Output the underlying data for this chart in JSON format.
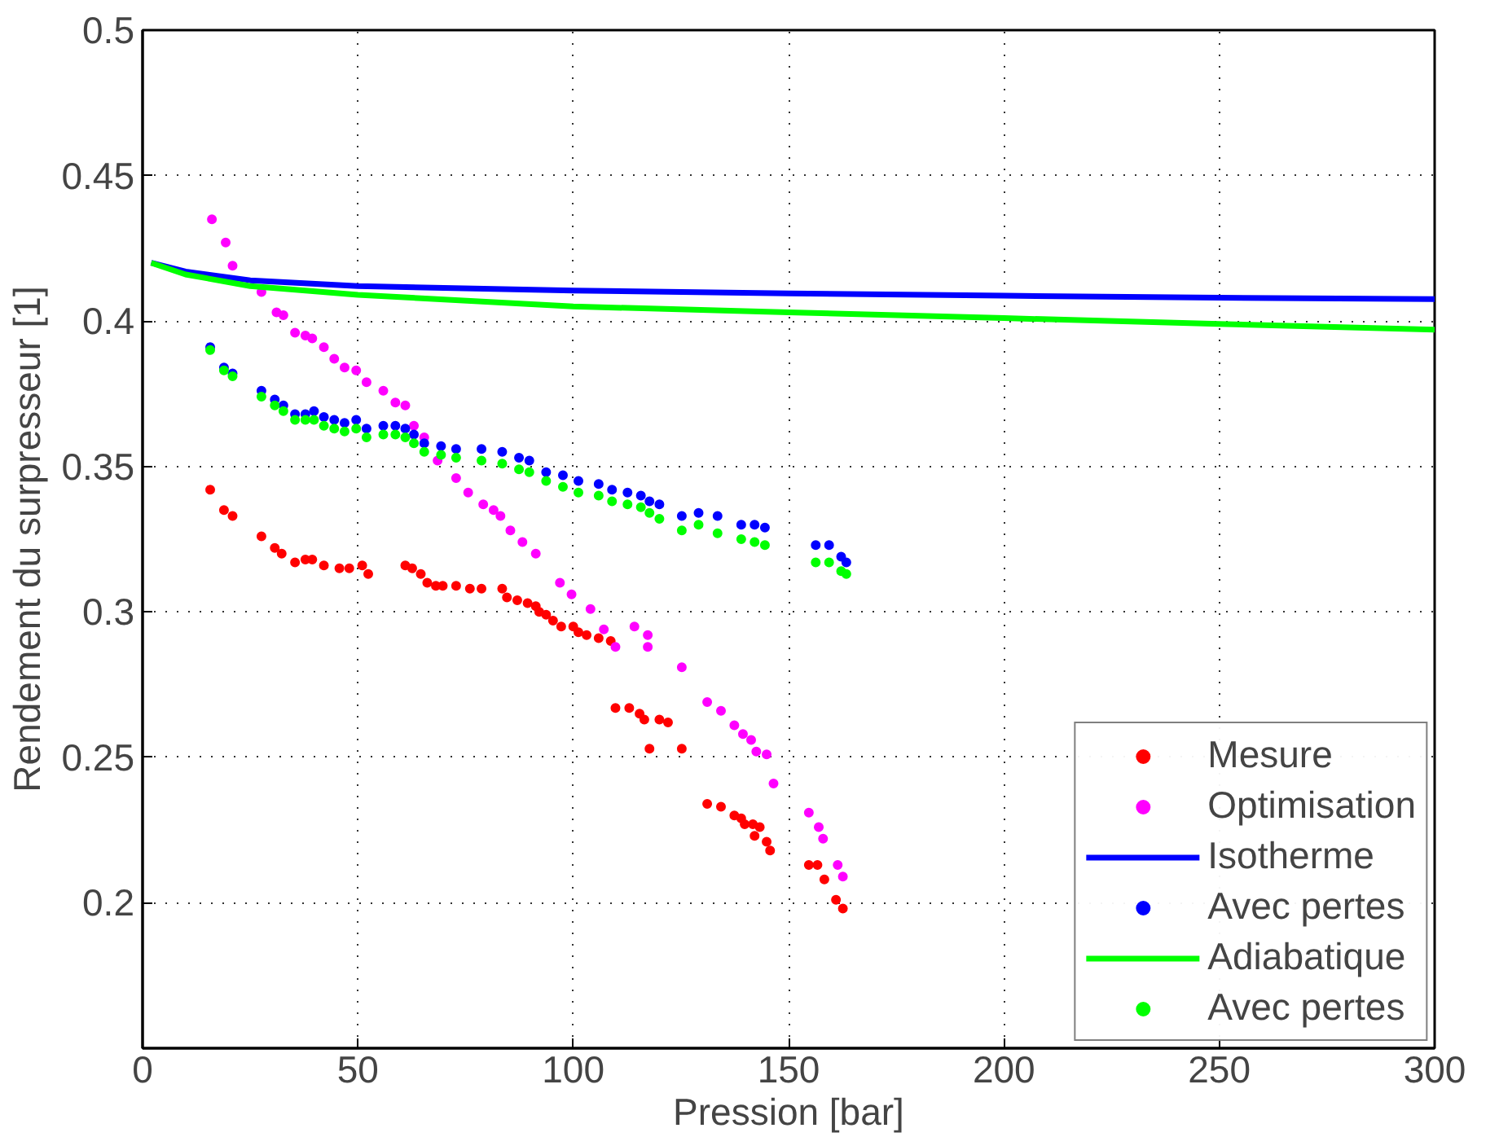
{
  "chart_data": {
    "type": "scatter",
    "xlabel": "Pression [bar]",
    "ylabel": "Rendement du surpresseur [1]",
    "xlim": [
      0,
      300
    ],
    "ylim": [
      0.15,
      0.5
    ],
    "xticks": [
      0,
      50,
      100,
      150,
      200,
      250,
      300
    ],
    "yticks": [
      {
        "value": 0.15,
        "label": null
      },
      0.2,
      0.25,
      0.3,
      0.35,
      0.4,
      0.45,
      0.5
    ],
    "grid": true,
    "legend": "bottom right",
    "marker": "circle",
    "series": [
      {
        "name": "Mesure",
        "color": "#ff0000",
        "x": [
          15.7,
          18.9,
          20.9,
          27.6,
          30.7,
          32.3,
          35.4,
          37.8,
          39.4,
          42.1,
          45.7,
          48,
          51,
          52.4,
          61,
          62.6,
          64.6,
          66.1,
          68.1,
          69.7,
          72.8,
          76,
          78.7,
          83.5,
          84.6,
          87,
          89.4,
          91.3,
          92.1,
          93.7,
          95.3,
          97.2,
          100,
          101.2,
          103.1,
          105.9,
          108.7,
          109.8,
          113,
          115.4,
          116.5,
          117.7,
          120,
          122,
          125.2,
          131.1,
          134.3,
          137.4,
          139,
          139.8,
          141.7,
          142.1,
          143.3,
          144.9,
          145.7,
          154.7,
          156.7,
          158.3,
          161,
          162.6
        ],
        "values": [
          0.342,
          0.335,
          0.333,
          0.326,
          0.322,
          0.32,
          0.317,
          0.318,
          0.318,
          0.316,
          0.315,
          0.315,
          0.316,
          0.313,
          0.316,
          0.315,
          0.313,
          0.31,
          0.309,
          0.309,
          0.309,
          0.308,
          0.308,
          0.308,
          0.305,
          0.304,
          0.303,
          0.302,
          0.3,
          0.299,
          0.297,
          0.295,
          0.295,
          0.293,
          0.292,
          0.291,
          0.29,
          0.267,
          0.267,
          0.265,
          0.263,
          0.253,
          0.263,
          0.262,
          0.253,
          0.234,
          0.233,
          0.23,
          0.229,
          0.227,
          0.227,
          0.223,
          0.226,
          0.221,
          0.218,
          0.213,
          0.213,
          0.208,
          0.201,
          0.198
        ]
      },
      {
        "name": "Optimisation",
        "color": "#ff00ff",
        "x": [
          16.1,
          19.3,
          20.9,
          27.6,
          31.1,
          32.7,
          35.4,
          37.8,
          39.4,
          42.1,
          44.5,
          46.9,
          49.6,
          52,
          55.9,
          58.7,
          61,
          63,
          65.4,
          68.5,
          72.8,
          75.6,
          79.1,
          81.5,
          83.1,
          85.4,
          88.2,
          91.3,
          96.9,
          99.6,
          104,
          107.1,
          109.8,
          114.2,
          117.3,
          117.3,
          125.2,
          131.1,
          134.3,
          137.4,
          139.4,
          141.3,
          142.5,
          144.9,
          146.5,
          154.7,
          157,
          158,
          161.4,
          162.6
        ],
        "values": [
          0.435,
          0.427,
          0.419,
          0.41,
          0.403,
          0.402,
          0.396,
          0.395,
          0.394,
          0.391,
          0.387,
          0.384,
          0.383,
          0.379,
          0.376,
          0.372,
          0.371,
          0.364,
          0.36,
          0.352,
          0.346,
          0.341,
          0.337,
          0.335,
          0.333,
          0.328,
          0.324,
          0.32,
          0.31,
          0.306,
          0.301,
          0.294,
          0.288,
          0.295,
          0.292,
          0.288,
          0.281,
          0.269,
          0.266,
          0.261,
          0.258,
          0.256,
          0.252,
          0.251,
          0.241,
          0.231,
          0.226,
          0.222,
          0.213,
          0.209
        ]
      },
      {
        "name": "Isotherme",
        "type": "line",
        "color": "#0000ff",
        "marker": "none",
        "x": [
          2,
          10,
          25,
          50,
          100,
          150,
          200,
          250,
          300
        ],
        "values": [
          0.42,
          0.417,
          0.414,
          0.412,
          0.4105,
          0.4095,
          0.4087,
          0.408,
          0.4075
        ]
      },
      {
        "name": "Avec pertes",
        "type": "scatter",
        "color": "#0000ff",
        "x": [
          15.7,
          18.9,
          20.9,
          27.6,
          30.7,
          32.7,
          35.4,
          37.8,
          39.8,
          42.1,
          44.5,
          46.9,
          49.6,
          52,
          55.9,
          58.7,
          61,
          63,
          65.4,
          69.3,
          72.8,
          78.7,
          83.5,
          87.4,
          89.8,
          93.7,
          97.6,
          101.2,
          105.9,
          109,
          112.6,
          115.7,
          117.7,
          120,
          125.2,
          129.1,
          133.5,
          139,
          142.1,
          144.5,
          156.3,
          159.4,
          162.2,
          163.4
        ],
        "values": [
          0.391,
          0.384,
          0.382,
          0.376,
          0.373,
          0.371,
          0.368,
          0.368,
          0.369,
          0.367,
          0.366,
          0.365,
          0.366,
          0.363,
          0.364,
          0.364,
          0.363,
          0.361,
          0.358,
          0.357,
          0.356,
          0.356,
          0.355,
          0.353,
          0.352,
          0.348,
          0.347,
          0.345,
          0.344,
          0.342,
          0.341,
          0.34,
          0.338,
          0.337,
          0.333,
          0.334,
          0.333,
          0.33,
          0.33,
          0.329,
          0.323,
          0.323,
          0.319,
          0.317
        ]
      },
      {
        "name": "Adiabatique",
        "type": "line",
        "color": "#00ff00",
        "marker": "none",
        "x": [
          2,
          10,
          25,
          50,
          100,
          150,
          200,
          250,
          300
        ],
        "values": [
          0.42,
          0.416,
          0.412,
          0.409,
          0.405,
          0.403,
          0.401,
          0.399,
          0.397
        ]
      },
      {
        "name": "Avec pertes",
        "type": "scatter",
        "color": "#00ff00",
        "x": [
          15.7,
          18.9,
          20.9,
          27.6,
          30.7,
          32.7,
          35.4,
          37.8,
          39.8,
          42.1,
          44.5,
          46.9,
          49.6,
          52,
          55.9,
          58.7,
          61,
          63,
          65.4,
          69.3,
          72.8,
          78.7,
          83.5,
          87.4,
          89.8,
          93.7,
          97.6,
          101.2,
          105.9,
          109,
          112.6,
          115.7,
          117.7,
          120,
          125.2,
          129.1,
          133.5,
          139,
          142.1,
          144.5,
          156.3,
          159.4,
          162.2,
          163.4
        ],
        "values": [
          0.39,
          0.383,
          0.381,
          0.374,
          0.371,
          0.369,
          0.366,
          0.366,
          0.366,
          0.364,
          0.363,
          0.362,
          0.363,
          0.36,
          0.361,
          0.361,
          0.36,
          0.358,
          0.355,
          0.354,
          0.353,
          0.352,
          0.351,
          0.349,
          0.348,
          0.345,
          0.343,
          0.341,
          0.34,
          0.338,
          0.337,
          0.336,
          0.334,
          0.332,
          0.328,
          0.33,
          0.327,
          0.325,
          0.324,
          0.323,
          0.317,
          0.317,
          0.314,
          0.313
        ]
      }
    ]
  }
}
